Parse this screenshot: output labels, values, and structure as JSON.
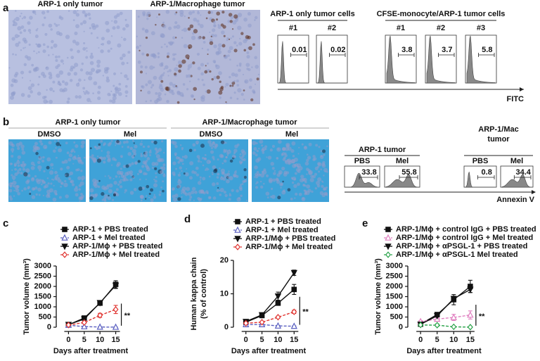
{
  "panel_labels": [
    "a",
    "b",
    "c",
    "d",
    "e"
  ],
  "panel_a": {
    "images": [
      "ARP-1 only tumor",
      "ARP-1/Macrophage tumor"
    ],
    "groups": [
      {
        "title": "ARP-1 only tumor cells",
        "samples": [
          {
            "label": "#1",
            "value": 0.01
          },
          {
            "label": "#2",
            "value": 0.02
          }
        ]
      },
      {
        "title": "CFSE-monocyte/ARP-1 tumor cells",
        "samples": [
          {
            "label": "#1",
            "value": 3.8
          },
          {
            "label": "#2",
            "value": 3.7
          },
          {
            "label": "#3",
            "value": 5.8
          }
        ]
      }
    ],
    "axis_label": "FITC"
  },
  "panel_b": {
    "image_groups": [
      {
        "title": "ARP-1 only tumor",
        "conditions": [
          "DMSO",
          "Mel"
        ]
      },
      {
        "title": "ARP-1/Macrophage tumor",
        "conditions": [
          "DMSO",
          "Mel"
        ]
      }
    ],
    "flow_groups": [
      {
        "title": [
          "ARP-1 tumor"
        ],
        "samples": [
          {
            "label": "PBS",
            "value": 33.8
          },
          {
            "label": "Mel",
            "value": 55.8
          }
        ]
      },
      {
        "title": [
          "ARP-1/Mac",
          "tumor"
        ],
        "samples": [
          {
            "label": "PBS",
            "value": 0.8
          },
          {
            "label": "Mel",
            "value": 34.4
          }
        ]
      }
    ],
    "axis_label": "Annexin V"
  },
  "chart_data": [
    {
      "type": "line",
      "y_label": [
        "Tumor volume (mm³)"
      ],
      "x_label": "Days after treatment",
      "x": [
        0,
        5,
        10,
        15
      ],
      "xlim": [
        -3,
        18
      ],
      "xticks": [
        0,
        5,
        10,
        15
      ],
      "ylim": [
        0,
        3000
      ],
      "yticks": [
        0,
        500,
        1000,
        1500,
        2000,
        2500,
        3000
      ],
      "annotation": "**",
      "series": [
        {
          "name": "ARP-1 + PBS treated",
          "color": "#111111",
          "marker": "square",
          "dashed": false,
          "values": [
            120,
            450,
            1180,
            2100
          ],
          "errors": [
            20,
            50,
            100,
            180
          ]
        },
        {
          "name": "ARP-1 + Mel treated",
          "color": "#5a5fc0",
          "marker": "triangle-up-open",
          "dashed": true,
          "values": [
            100,
            30,
            10,
            5
          ],
          "errors": [
            10,
            10,
            5,
            5
          ]
        },
        {
          "name": "ARP-1/Mϕ + PBS treated",
          "color": "#111111",
          "marker": "triangle-down",
          "dashed": false,
          "values": [
            130,
            400,
            1200,
            2050
          ],
          "errors": [
            20,
            50,
            90,
            150
          ]
        },
        {
          "name": "ARP-1/Mϕ + Mel treated",
          "color": "#e0332f",
          "marker": "diamond-open",
          "dashed": true,
          "values": [
            110,
            230,
            580,
            870
          ],
          "errors": [
            30,
            50,
            100,
            200
          ]
        }
      ]
    },
    {
      "type": "line",
      "y_label": [
        "Human kappa chain",
        "(% of control)"
      ],
      "x_label": "Days after treatment",
      "x": [
        0,
        5,
        10,
        15
      ],
      "xlim": [
        -3,
        18
      ],
      "xticks": [
        0,
        5,
        10,
        15
      ],
      "ylim": [
        0,
        20
      ],
      "yticks": [
        0,
        10,
        20
      ],
      "annotation": "**",
      "series": [
        {
          "name": "ARP-1 + PBS treated",
          "color": "#111111",
          "marker": "square",
          "dashed": false,
          "values": [
            1.5,
            3.5,
            7.2,
            11.3
          ],
          "errors": [
            0.2,
            0.3,
            0.6,
            1.5
          ]
        },
        {
          "name": "ARP-1 + Mel treated",
          "color": "#5a5fc0",
          "marker": "triangle-up-open",
          "dashed": true,
          "values": [
            0.8,
            0.8,
            0.4,
            0.3
          ],
          "errors": [
            0.1,
            0.1,
            0.1,
            0.1
          ]
        },
        {
          "name": "ARP-1/Mϕ + PBS treated",
          "color": "#111111",
          "marker": "triangle-down",
          "dashed": false,
          "values": [
            1.7,
            3.7,
            9.3,
            16.3
          ],
          "errors": [
            0.2,
            0.3,
            1.2,
            0.8
          ]
        },
        {
          "name": "ARP-1/Mϕ + Mel treated",
          "color": "#e0332f",
          "marker": "diamond-open",
          "dashed": true,
          "values": [
            1.2,
            1.5,
            3.0,
            4.6
          ],
          "errors": [
            0.2,
            0.2,
            0.3,
            0.5
          ]
        }
      ]
    },
    {
      "type": "line",
      "y_label": [
        "Tumor volume (mm³)"
      ],
      "x_label": "Days after treatment",
      "x": [
        0,
        5,
        10,
        15
      ],
      "xlim": [
        -3,
        18
      ],
      "xticks": [
        0,
        5,
        10,
        15
      ],
      "ylim": [
        0,
        3000
      ],
      "yticks": [
        0,
        500,
        1000,
        1500,
        2000,
        2500,
        3000
      ],
      "annotation": "**",
      "series": [
        {
          "name": "ARP-1/Mϕ + control IgG + PBS treated",
          "color": "#111111",
          "marker": "square",
          "dashed": false,
          "values": [
            150,
            620,
            1350,
            2000
          ],
          "errors": [
            20,
            60,
            250,
            300
          ]
        },
        {
          "name": "ARP-1/Mϕ + control IgG + Mel treated",
          "color": "#e07fc0",
          "marker": "triangle-up-open",
          "dashed": true,
          "values": [
            280,
            400,
            480,
            600
          ],
          "errors": [
            40,
            80,
            150,
            200
          ]
        },
        {
          "name": "ARP-1/Mϕ + αPSGL-1 + PBS treated",
          "color": "#111111",
          "marker": "triangle-down",
          "dashed": false,
          "values": [
            140,
            560,
            1400,
            1850
          ],
          "errors": [
            20,
            60,
            120,
            150
          ]
        },
        {
          "name": "ARP-1/Mϕ + αPSGL-1 Mel treated",
          "color": "#2aa34a",
          "marker": "diamond-open",
          "dashed": true,
          "values": [
            110,
            100,
            20,
            5
          ],
          "errors": [
            30,
            60,
            20,
            5
          ]
        }
      ]
    }
  ]
}
